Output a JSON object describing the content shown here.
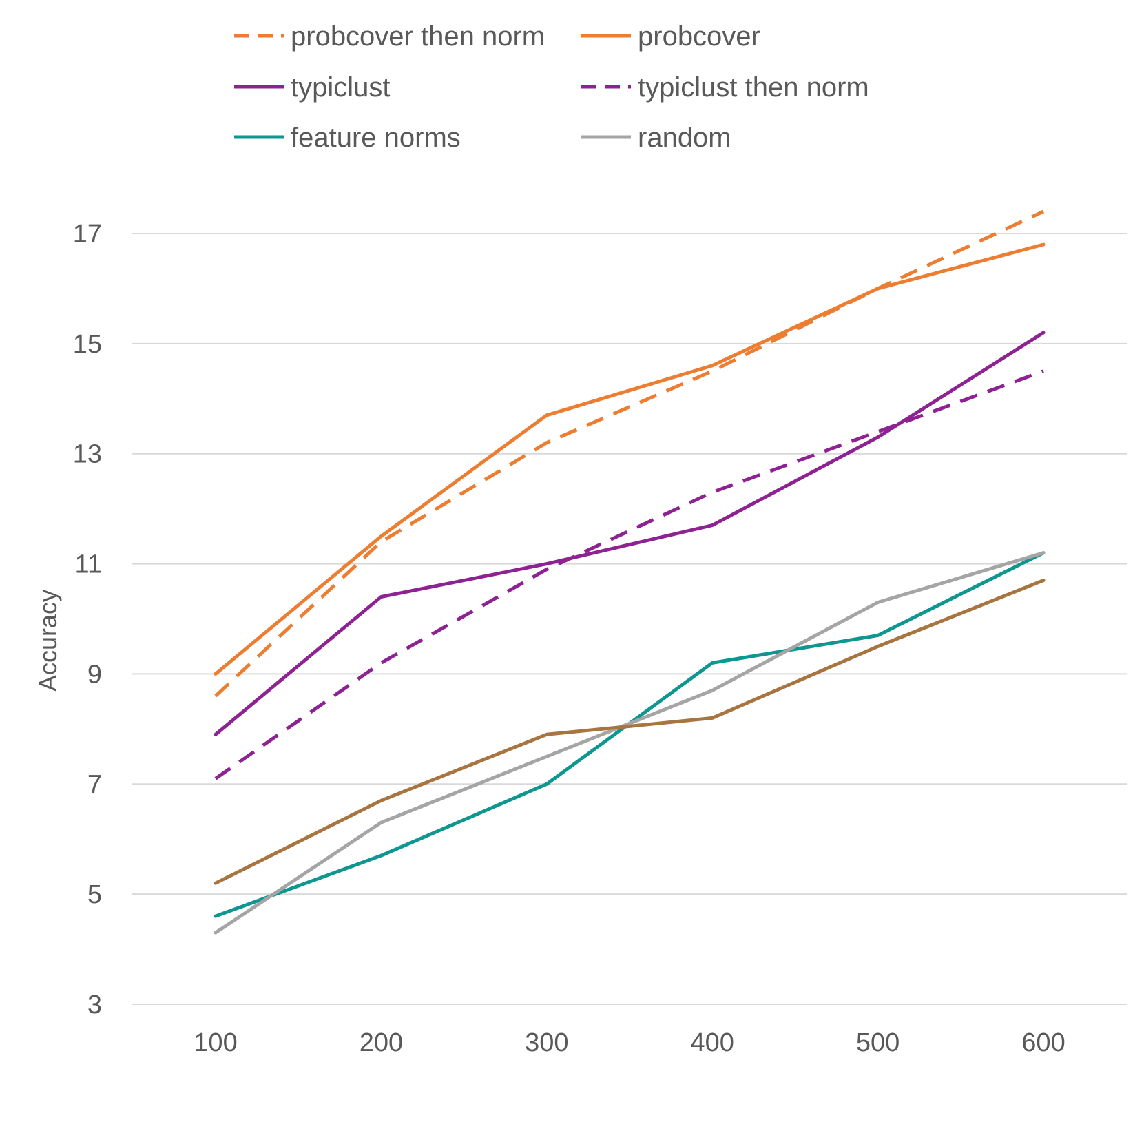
{
  "chart_data": {
    "type": "line",
    "title": "",
    "xlabel": "",
    "ylabel": "Accuracy",
    "x": [
      100,
      200,
      300,
      400,
      500,
      600
    ],
    "xticks": [
      "100",
      "200",
      "300",
      "400",
      "500",
      "600"
    ],
    "yticks": [
      "3",
      "5",
      "7",
      "9",
      "11",
      "13",
      "15",
      "17"
    ],
    "ylim": [
      3,
      17
    ],
    "grid": "horizontal",
    "legend_position": "top",
    "series": [
      {
        "name": "probcover then norm",
        "color": "#ED7D31",
        "dash": true,
        "values": [
          8.6,
          11.4,
          13.2,
          14.5,
          16.0,
          17.4
        ]
      },
      {
        "name": "probcover",
        "color": "#ED7D31",
        "dash": false,
        "values": [
          9.0,
          11.5,
          13.7,
          14.6,
          16.0,
          16.8
        ]
      },
      {
        "name": "typiclust",
        "color": "#8E2293",
        "dash": false,
        "values": [
          7.9,
          10.4,
          11.0,
          11.7,
          13.3,
          15.2
        ]
      },
      {
        "name": "typiclust then norm",
        "color": "#8E2293",
        "dash": true,
        "values": [
          7.1,
          9.2,
          10.9,
          12.3,
          13.4,
          14.5
        ]
      },
      {
        "name": "feature norms",
        "color": "#0E9690",
        "dash": false,
        "values": [
          4.6,
          5.7,
          7.0,
          9.2,
          9.7,
          11.2
        ]
      },
      {
        "name": "random",
        "color": "#A5A5A5",
        "dash": false,
        "values": [
          4.3,
          6.3,
          7.5,
          8.7,
          10.3,
          11.2
        ]
      },
      {
        "name": "",
        "color": "#A8743F",
        "dash": false,
        "values": [
          5.2,
          6.7,
          7.9,
          8.2,
          9.5,
          10.7
        ]
      }
    ]
  }
}
